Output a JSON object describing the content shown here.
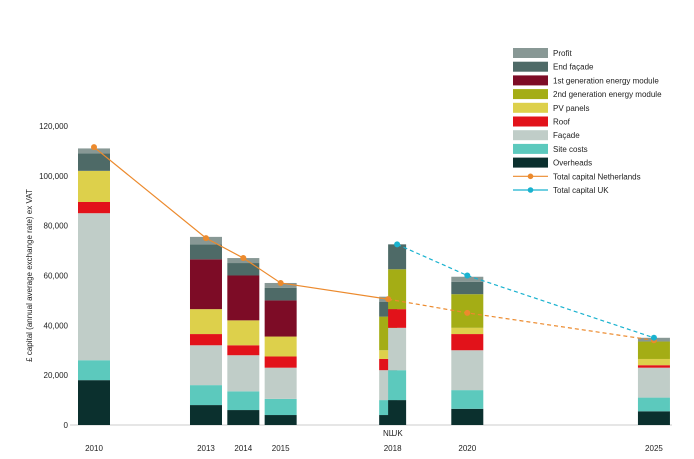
{
  "chart_data": {
    "type": "bar",
    "stacked": true,
    "ylabel": "£ capital (annual average exchange rate) ex VAT",
    "ylim": [
      0,
      120000
    ],
    "yticks": [
      "0",
      "20,000",
      "40,000",
      "60,000",
      "80,000",
      "100,000",
      "120,000"
    ],
    "legend_position": "top-right",
    "x_labels": [
      {
        "label": "2010",
        "year": 2010
      },
      {
        "label": "2013",
        "year": 2013
      },
      {
        "label": "2014",
        "year": 2014
      },
      {
        "label": "2015",
        "year": 2015
      },
      {
        "label": "2018",
        "year": 2018
      },
      {
        "label": "2020",
        "year": 2020
      },
      {
        "label": "2025",
        "year": 2025
      }
    ],
    "bar_labels": [
      {
        "label": "NL",
        "year": 2017.88
      },
      {
        "label": "UK",
        "year": 2018.12
      }
    ],
    "components": [
      {
        "name": "Overheads",
        "color": "#0b302e"
      },
      {
        "name": "Site costs",
        "color": "#5cc9bd"
      },
      {
        "name": "Façade",
        "color": "#c0cdc8"
      },
      {
        "name": "Roof",
        "color": "#e2121a"
      },
      {
        "name": "PV panels",
        "color": "#ddd04b"
      },
      {
        "name": "2nd generation energy module",
        "color": "#a4ad15"
      },
      {
        "name": "1st generation energy module",
        "color": "#7d0c26"
      },
      {
        "name": "End façade",
        "color": "#4e6a67"
      },
      {
        "name": "Profit",
        "color": "#889895"
      }
    ],
    "bars": [
      {
        "year": 2010,
        "values": [
          18000,
          8000,
          59000,
          4500,
          12500,
          0,
          0,
          7000,
          2000
        ]
      },
      {
        "year": 2013,
        "values": [
          8000,
          8000,
          16000,
          4500,
          10000,
          0,
          20000,
          6000,
          3000
        ]
      },
      {
        "year": 2014,
        "values": [
          6000,
          7500,
          14500,
          4000,
          10000,
          0,
          18000,
          5000,
          2000
        ]
      },
      {
        "year": 2015,
        "values": [
          4000,
          6500,
          12500,
          4500,
          8000,
          0,
          14500,
          5000,
          2000
        ]
      },
      {
        "year": 2017.88,
        "values": [
          4000,
          6000,
          12000,
          4500,
          3500,
          13500,
          0,
          6000,
          2000
        ]
      },
      {
        "year": 2018.12,
        "values": [
          10000,
          12000,
          17000,
          7500,
          0,
          16000,
          0,
          10000,
          0
        ]
      },
      {
        "year": 2020,
        "values": [
          6500,
          7500,
          16000,
          6500,
          2500,
          13500,
          0,
          5000,
          2000
        ]
      },
      {
        "year": 2025,
        "values": [
          5500,
          5500,
          12000,
          1000,
          2500,
          7000,
          0,
          0,
          1500
        ]
      }
    ],
    "series": [
      {
        "name": "Total capital Netherlands",
        "color": "#ec8a2d",
        "solid": [
          [
            2010,
            111500
          ],
          [
            2013,
            75000
          ],
          [
            2014,
            67000
          ],
          [
            2015,
            57000
          ],
          [
            2017.88,
            50500
          ]
        ],
        "dashed": [
          [
            2017.88,
            50500
          ],
          [
            2020,
            45000
          ],
          [
            2025,
            34000
          ]
        ]
      },
      {
        "name": "Total capital UK",
        "color": "#19b2cf",
        "solid": [],
        "dashed": [
          [
            2018.12,
            72500
          ],
          [
            2020,
            60000
          ],
          [
            2025,
            35000
          ]
        ]
      }
    ]
  }
}
